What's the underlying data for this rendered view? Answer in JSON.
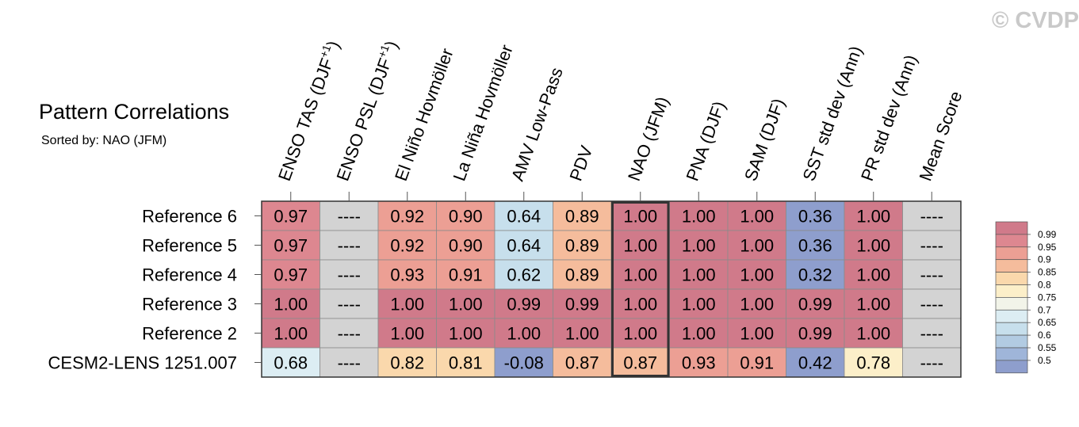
{
  "watermark": "© CVDP",
  "title": "Pattern Correlations",
  "subtitle": "Sorted by: NAO (JFM)",
  "chart_data": {
    "type": "heatmap",
    "highlight_column": "NAO (JFM)",
    "columns": [
      "ENSO TAS (DJF+1)",
      "ENSO PSL (DJF+1)",
      "El Niño Hovmöller",
      "La Niña Hovmöller",
      "AMV Low-Pass",
      "PDV",
      "NAO (JFM)",
      "PNA (DJF)",
      "SAM (DJF)",
      "SST std dev (Ann)",
      "PR std dev (Ann)",
      "Mean Score"
    ],
    "rows": [
      {
        "name": "Reference 6",
        "values": [
          "0.97",
          "----",
          "0.92",
          "0.90",
          "0.64",
          "0.89",
          "1.00",
          "1.00",
          "1.00",
          "0.36",
          "1.00",
          "----"
        ]
      },
      {
        "name": "Reference 5",
        "values": [
          "0.97",
          "----",
          "0.92",
          "0.90",
          "0.64",
          "0.89",
          "1.00",
          "1.00",
          "1.00",
          "0.36",
          "1.00",
          "----"
        ]
      },
      {
        "name": "Reference 4",
        "values": [
          "0.97",
          "----",
          "0.93",
          "0.91",
          "0.62",
          "0.89",
          "1.00",
          "1.00",
          "1.00",
          "0.32",
          "1.00",
          "----"
        ]
      },
      {
        "name": "Reference 3",
        "values": [
          "1.00",
          "----",
          "1.00",
          "1.00",
          "0.99",
          "0.99",
          "1.00",
          "1.00",
          "1.00",
          "0.99",
          "1.00",
          "----"
        ]
      },
      {
        "name": "Reference 2",
        "values": [
          "1.00",
          "----",
          "1.00",
          "1.00",
          "1.00",
          "1.00",
          "1.00",
          "1.00",
          "1.00",
          "0.99",
          "1.00",
          "----"
        ]
      },
      {
        "name": "CESM2-LENS 1251.007",
        "values": [
          "0.68",
          "----",
          "0.82",
          "0.81",
          "-0.08",
          "0.87",
          "0.87",
          "0.93",
          "0.91",
          "0.42",
          "0.78",
          "----"
        ]
      }
    ],
    "colorbar": {
      "levels": [
        "0.99",
        "0.95",
        "0.9",
        "0.85",
        "0.8",
        "0.75",
        "0.7",
        "0.65",
        "0.6",
        "0.55",
        "0.5"
      ],
      "colors_top_to_bottom": [
        "#d07a8a",
        "#dd8790",
        "#ec9f94",
        "#f5bc9c",
        "#fad8ac",
        "#fcefc9",
        "#f2f4e9",
        "#dcedf3",
        "#c7dfec",
        "#b2cbe2",
        "#9fb5d9",
        "#8e9ecd"
      ],
      "missing_color": "#d3d3d3"
    }
  }
}
